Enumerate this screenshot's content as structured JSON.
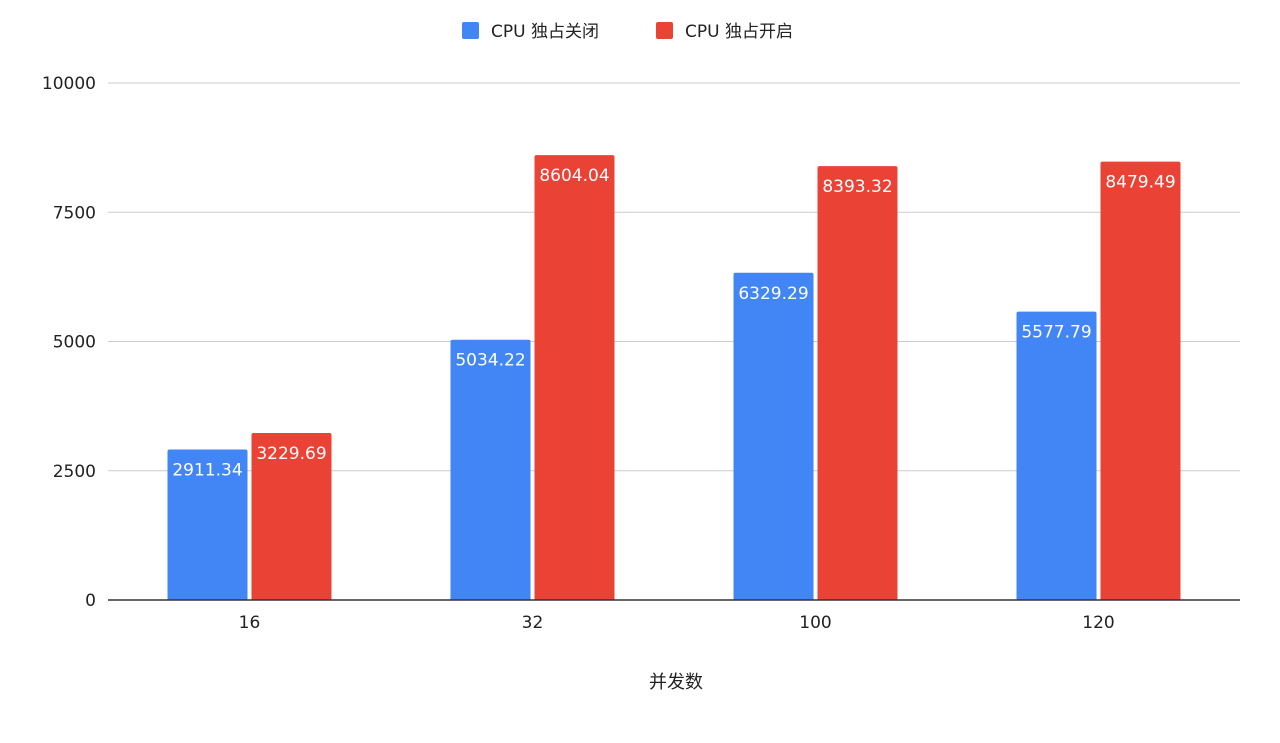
{
  "chart_data": {
    "type": "bar",
    "title": "",
    "xlabel": "并发数",
    "ylabel": "",
    "categories": [
      "16",
      "32",
      "100",
      "120"
    ],
    "series": [
      {
        "name": "CPU 独占关闭",
        "color": "#4285F4",
        "values": [
          2911.34,
          5034.22,
          6329.29,
          5577.79
        ],
        "labels": [
          "2911.34",
          "5034.22",
          "6329.29",
          "5577.79"
        ]
      },
      {
        "name": "CPU 独占开启",
        "color": "#EA4335",
        "values": [
          3229.69,
          8604.04,
          8393.32,
          8479.49
        ],
        "labels": [
          "3229.69",
          "8604.04",
          "8393.32",
          "8479.49"
        ]
      }
    ],
    "ylim": [
      0,
      10000
    ],
    "yticks": [
      0,
      2500,
      5000,
      7500,
      10000
    ],
    "ytick_labels": [
      "0",
      "2500",
      "5000",
      "7500",
      "10000"
    ],
    "grid": true,
    "legend": "top-center"
  }
}
